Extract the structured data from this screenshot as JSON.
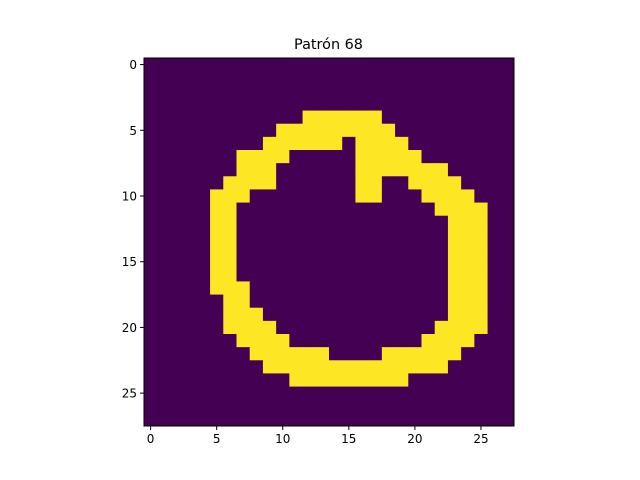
{
  "chart_data": {
    "type": "heatmap",
    "title": "Patrón 68",
    "xlabel": "",
    "ylabel": "",
    "xlim": [
      -0.5,
      27.5
    ],
    "ylim": [
      27.5,
      -0.5
    ],
    "x_ticks": [
      0,
      5,
      10,
      15,
      20,
      25
    ],
    "y_ticks": [
      0,
      5,
      10,
      15,
      20,
      25
    ],
    "grid": false,
    "colormap": "viridis",
    "value_colors": {
      "0": "#440154",
      "1": "#fde725"
    },
    "width": 28,
    "height": 28,
    "rows": [
      "0000000000000000000000000000",
      "0000000000000000000000000000",
      "0000000000000000000000000000",
      "0000000000000000000000000000",
      "0000000000001111110000000000",
      "0000000000111111111000000000",
      "0000000001111110111100000000",
      "0000000111100000111110000000",
      "0000000111000000111111100000",
      "0000001111000000110011110000",
      "0000011100000000110001111000",
      "0000011000000000000000111100",
      "0000011000000000000000011100",
      "0000011000000000000000011100",
      "0000011000000000000000011100",
      "0000011000000000000000011100",
      "0000011000000000000000011100",
      "0000011100000000000000011100",
      "0000001100000000000000011100",
      "0000001110000000000000011100",
      "0000001111000000000000111100",
      "0000000111100000000001111000",
      "0000000011111100001111110000",
      "0000000001111111111111100000",
      "0000000000011111111100000000",
      "0000000000000000000000000000",
      "0000000000000000000000000000",
      "0000000000000000000000000000"
    ]
  }
}
